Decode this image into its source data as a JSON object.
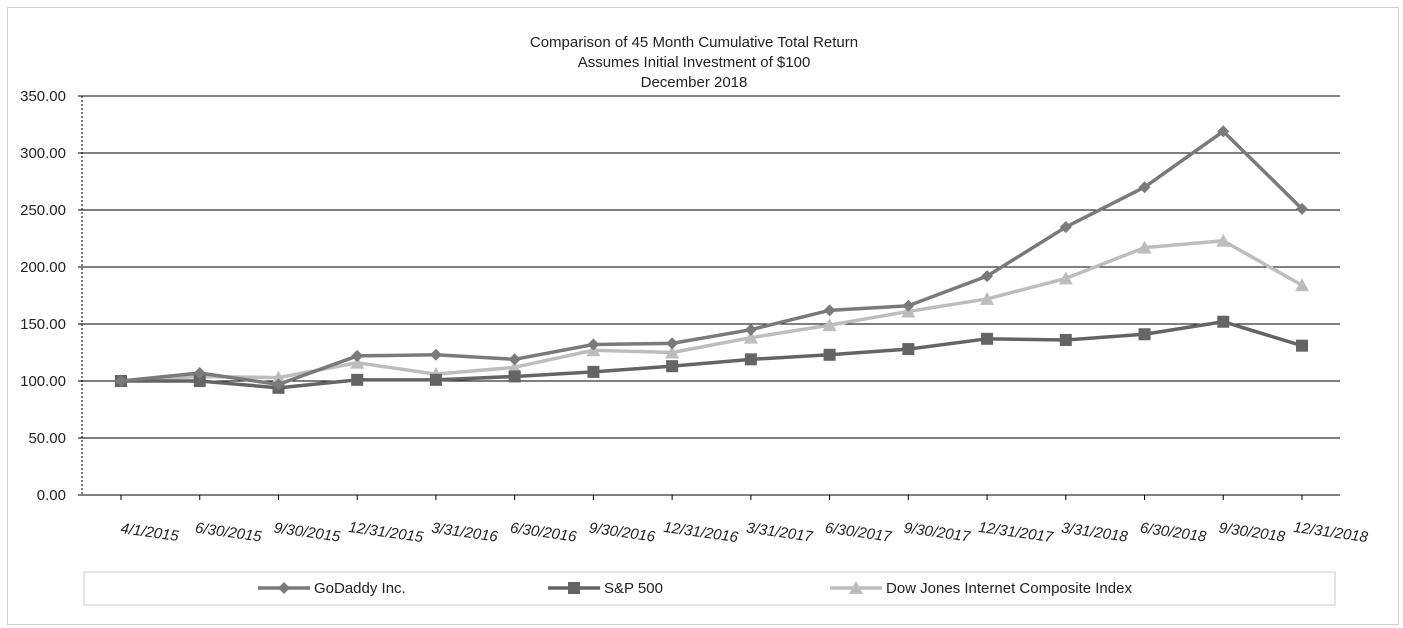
{
  "chart_data": {
    "type": "line",
    "title": [
      "Comparison of 45 Month Cumulative Total Return",
      "Assumes Initial Investment of $100",
      "December 2018"
    ],
    "categories": [
      "4/1/2015",
      "6/30/2015",
      "9/30/2015",
      "12/31/2015",
      "3/31/2016",
      "6/30/2016",
      "9/30/2016",
      "12/31/2016",
      "3/31/2017",
      "6/30/2017",
      "9/30/2017",
      "12/31/2017",
      "3/31/2018",
      "6/30/2018",
      "9/30/2018",
      "12/31/2018"
    ],
    "yticks": [
      "0.00",
      "50.00",
      "100.00",
      "150.00",
      "200.00",
      "250.00",
      "300.00",
      "350.00"
    ],
    "ylim": [
      0,
      350
    ],
    "grid": true,
    "legend_position": "bottom",
    "series": [
      {
        "name": "GoDaddy Inc.",
        "color": "#7a7a7a",
        "marker": "diamond",
        "values": [
          100,
          107,
          97,
          122,
          123,
          119,
          132,
          133,
          145,
          162,
          166,
          192,
          235,
          270,
          319,
          251
        ]
      },
      {
        "name": "S&P 500",
        "color": "#646464",
        "marker": "square",
        "values": [
          100,
          100,
          94,
          101,
          101,
          104,
          108,
          113,
          119,
          123,
          128,
          137,
          136,
          141,
          152,
          131
        ]
      },
      {
        "name": "Dow Jones Internet Composite Index",
        "color": "#bdbdbd",
        "marker": "triangle",
        "values": [
          100,
          104,
          103,
          116,
          106,
          112,
          127,
          125,
          138,
          149,
          161,
          172,
          190,
          217,
          223,
          184
        ]
      }
    ]
  }
}
